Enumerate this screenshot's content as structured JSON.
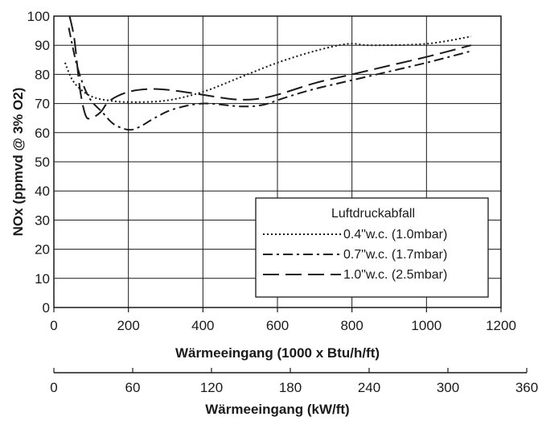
{
  "chart_data": {
    "type": "line",
    "title": "",
    "ylabel": "NOx (ppmvd @ 3% O2)",
    "xlabel": "Wärmeeingang (1000 x Btu/h/ft)",
    "xlabel_secondary": "Wärmeeingang (kW/ft)",
    "xlim": [
      0,
      1200
    ],
    "ylim": [
      0,
      100
    ],
    "x_ticks": [
      0,
      200,
      400,
      600,
      800,
      1000,
      1200
    ],
    "y_ticks": [
      0,
      10,
      20,
      30,
      40,
      50,
      60,
      70,
      80,
      90,
      100
    ],
    "secondary_x_ticks": [
      0,
      60,
      120,
      180,
      240,
      300,
      360
    ],
    "secondary_xlim": [
      0,
      360
    ],
    "grid": true,
    "legend": {
      "title": "Luftdruckabfall",
      "placement": "lower-right"
    },
    "series": [
      {
        "name": "0.4\"w.c. (1.0mbar)",
        "style": "dotted",
        "x": [
          30,
          50,
          80,
          110,
          150,
          200,
          300,
          400,
          500,
          600,
          700,
          790,
          850,
          1000,
          1120
        ],
        "y": [
          84,
          78,
          74,
          72,
          71,
          70.5,
          71,
          74,
          79,
          84,
          88,
          90.5,
          90,
          90.5,
          93
        ]
      },
      {
        "name": "0.7\"w.c. (1.7mbar)",
        "style": "dash-dot",
        "x": [
          40,
          60,
          80,
          100,
          130,
          160,
          200,
          230,
          270,
          320,
          400,
          500,
          560,
          620,
          700,
          800,
          900,
          1000,
          1120
        ],
        "y": [
          96,
          84,
          76,
          71,
          67,
          63,
          61,
          62,
          65,
          68,
          70,
          69,
          69.5,
          72,
          75,
          78,
          81,
          84,
          88
        ]
      },
      {
        "name": "1.0\"w.c. (2.5mbar)",
        "style": "long-dash",
        "x": [
          42,
          55,
          70,
          85,
          100,
          125,
          150,
          200,
          260,
          320,
          400,
          480,
          540,
          600,
          700,
          800,
          900,
          1000,
          1120
        ],
        "y": [
          100,
          92,
          75,
          66,
          65,
          67,
          71,
          74,
          75,
          74.5,
          73,
          71.5,
          71.5,
          73,
          77,
          80,
          83,
          86,
          90
        ]
      }
    ]
  }
}
